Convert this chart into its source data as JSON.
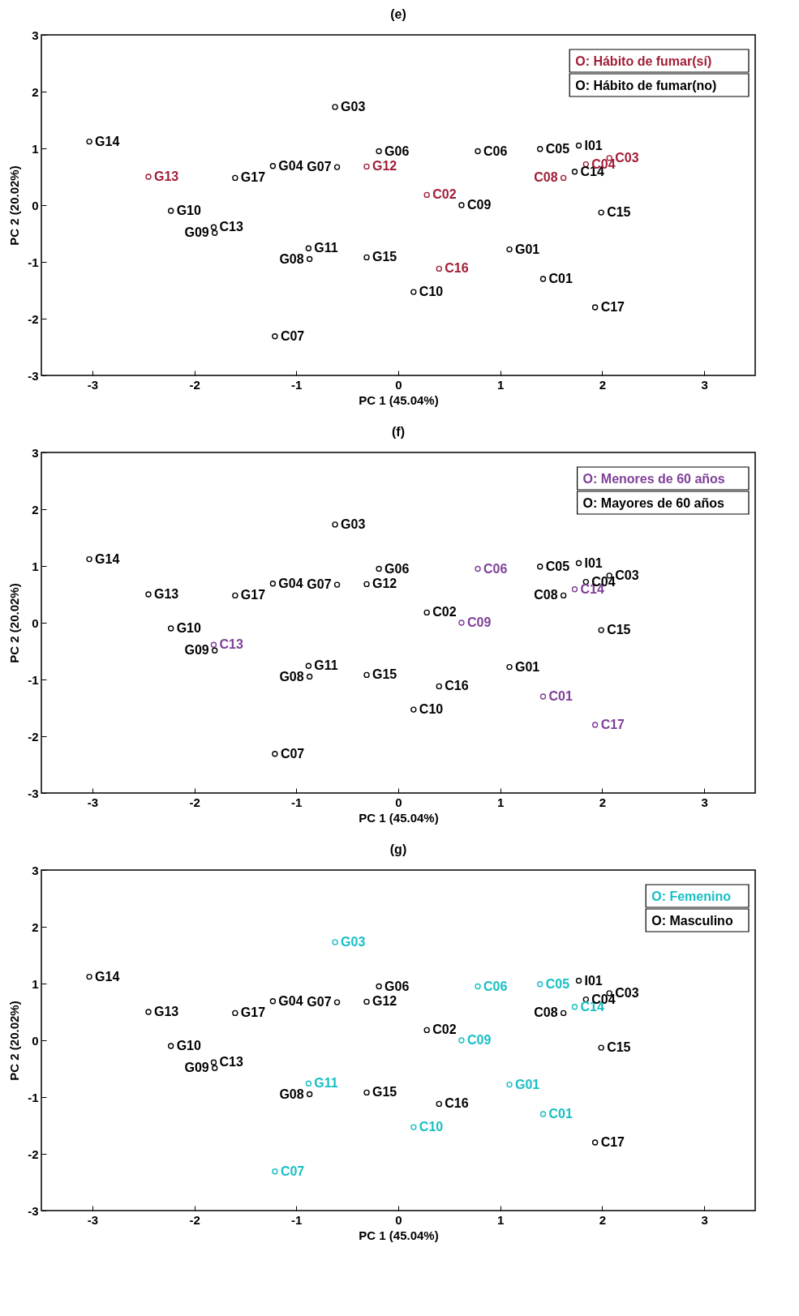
{
  "chart_data": [
    {
      "type": "scatter",
      "title": "(e)",
      "xlabel": "PC 1 (45.04%)",
      "ylabel": "PC 2 (20.02%)",
      "xlim": [
        -3.5,
        3.5
      ],
      "ylim": [
        -3,
        3
      ],
      "xticks": [
        -3,
        -2,
        -1,
        0,
        1,
        2,
        3
      ],
      "yticks": [
        -3,
        -2,
        -1,
        0,
        1,
        2,
        3
      ],
      "grid": false,
      "legend": "top right",
      "marker": "circle",
      "series": [
        {
          "name": "O: Hábito de fumar(sí)",
          "color": "#a21d36",
          "x": [
            -2.45,
            -0.31,
            0.28,
            0.4,
            1.62,
            1.84,
            2.07
          ],
          "values": [
            0.5,
            0.68,
            0.18,
            -1.12,
            0.48,
            0.72,
            0.83
          ]
        },
        {
          "name": "O: Hábito de fumar(no)",
          "color": "#000000",
          "x": [
            -3.03,
            -2.23,
            -1.81,
            -1.8,
            -1.6,
            -1.23,
            -1.21,
            -0.88,
            -0.87,
            -0.62,
            -0.6,
            -0.31,
            -0.19,
            0.62,
            0.78,
            0.15,
            1.09,
            1.39,
            1.42,
            1.77,
            1.73,
            1.99,
            1.93
          ],
          "values": [
            1.12,
            -0.1,
            -0.39,
            -0.49,
            0.48,
            0.69,
            -2.31,
            -0.76,
            -0.95,
            1.73,
            0.67,
            -0.92,
            0.95,
            0.0,
            0.95,
            -1.53,
            -0.78,
            0.99,
            -1.3,
            1.05,
            0.59,
            -0.13,
            -1.8
          ]
        }
      ],
      "annotations": [
        {
          "text": "G14",
          "x": -3.03,
          "y": 1.12
        },
        {
          "text": "G13",
          "x": -2.45,
          "y": 0.5
        },
        {
          "text": "G10",
          "x": -2.23,
          "y": -0.1
        },
        {
          "text": "C13",
          "x": -1.81,
          "y": -0.39
        },
        {
          "text": "G09",
          "x": -1.8,
          "y": -0.49
        },
        {
          "text": "G17",
          "x": -1.6,
          "y": 0.48
        },
        {
          "text": "G04",
          "x": -1.23,
          "y": 0.69
        },
        {
          "text": "C07",
          "x": -1.21,
          "y": -2.31
        },
        {
          "text": "G11",
          "x": -0.88,
          "y": -0.76
        },
        {
          "text": "G08",
          "x": -0.87,
          "y": -0.95
        },
        {
          "text": "G03",
          "x": -0.62,
          "y": 1.73
        },
        {
          "text": "G07",
          "x": -0.6,
          "y": 0.67
        },
        {
          "text": "G12",
          "x": -0.31,
          "y": 0.68
        },
        {
          "text": "G15",
          "x": -0.31,
          "y": -0.92
        },
        {
          "text": "G06",
          "x": -0.19,
          "y": 0.95
        },
        {
          "text": "C02",
          "x": 0.28,
          "y": 0.18
        },
        {
          "text": "C09",
          "x": 0.62,
          "y": 0.0
        },
        {
          "text": "C06",
          "x": 0.78,
          "y": 0.95
        },
        {
          "text": "C16",
          "x": 0.4,
          "y": -1.12
        },
        {
          "text": "C10",
          "x": 0.15,
          "y": -1.53
        },
        {
          "text": "G01",
          "x": 1.09,
          "y": -0.78
        },
        {
          "text": "C05",
          "x": 1.39,
          "y": 0.99
        },
        {
          "text": "C01",
          "x": 1.42,
          "y": -1.3
        },
        {
          "text": "C08",
          "x": 1.62,
          "y": 0.48
        },
        {
          "text": "I01",
          "x": 1.77,
          "y": 1.05
        },
        {
          "text": "C14",
          "x": 1.73,
          "y": 0.59
        },
        {
          "text": "C04",
          "x": 1.84,
          "y": 0.72
        },
        {
          "text": "C03",
          "x": 2.07,
          "y": 0.83
        },
        {
          "text": "C15",
          "x": 1.99,
          "y": -0.13
        },
        {
          "text": "C17",
          "x": 1.93,
          "y": -1.8
        }
      ]
    },
    {
      "type": "scatter",
      "title": "(f)",
      "xlabel": "PC 1 (45.04%)",
      "ylabel": "PC 2 (20.02%)",
      "xlim": [
        -3.5,
        3.5
      ],
      "ylim": [
        -3,
        3
      ],
      "xticks": [
        -3,
        -2,
        -1,
        0,
        1,
        2,
        3
      ],
      "yticks": [
        -3,
        -2,
        -1,
        0,
        1,
        2,
        3
      ],
      "grid": false,
      "legend": "top right",
      "marker": "circle",
      "series": [
        {
          "name": "O: Menores de 60 años",
          "color": "#7f3f98",
          "x": [
            -1.81,
            0.62,
            0.78,
            1.42,
            1.73,
            1.93
          ],
          "values": [
            -0.39,
            0.0,
            0.95,
            -1.3,
            0.59,
            -1.8
          ]
        },
        {
          "name": "O: Mayores de 60 años",
          "color": "#000000",
          "x": [
            -3.03,
            -2.45,
            -2.23,
            -1.8,
            -1.6,
            -1.23,
            -1.21,
            -0.88,
            -0.87,
            -0.62,
            -0.6,
            -0.31,
            -0.31,
            -0.19,
            0.28,
            0.4,
            0.15,
            1.09,
            1.39,
            1.62,
            1.77,
            1.84,
            2.07,
            1.99
          ],
          "values": [
            1.12,
            0.5,
            -0.1,
            -0.49,
            0.48,
            0.69,
            -2.31,
            -0.76,
            -0.95,
            1.73,
            0.67,
            0.68,
            -0.92,
            0.95,
            0.18,
            -1.12,
            -1.53,
            -0.78,
            0.99,
            0.48,
            1.05,
            0.72,
            0.83,
            -0.13
          ]
        }
      ],
      "annotations": [
        {
          "text": "G14",
          "x": -3.03,
          "y": 1.12
        },
        {
          "text": "G13",
          "x": -2.45,
          "y": 0.5
        },
        {
          "text": "G10",
          "x": -2.23,
          "y": -0.1
        },
        {
          "text": "C13",
          "x": -1.81,
          "y": -0.39
        },
        {
          "text": "G09",
          "x": -1.8,
          "y": -0.49
        },
        {
          "text": "G17",
          "x": -1.6,
          "y": 0.48
        },
        {
          "text": "G04",
          "x": -1.23,
          "y": 0.69
        },
        {
          "text": "C07",
          "x": -1.21,
          "y": -2.31
        },
        {
          "text": "G11",
          "x": -0.88,
          "y": -0.76
        },
        {
          "text": "G08",
          "x": -0.87,
          "y": -0.95
        },
        {
          "text": "G03",
          "x": -0.62,
          "y": 1.73
        },
        {
          "text": "G07",
          "x": -0.6,
          "y": 0.67
        },
        {
          "text": "G12",
          "x": -0.31,
          "y": 0.68
        },
        {
          "text": "G15",
          "x": -0.31,
          "y": -0.92
        },
        {
          "text": "G06",
          "x": -0.19,
          "y": 0.95
        },
        {
          "text": "C02",
          "x": 0.28,
          "y": 0.18
        },
        {
          "text": "C09",
          "x": 0.62,
          "y": 0.0
        },
        {
          "text": "C06",
          "x": 0.78,
          "y": 0.95
        },
        {
          "text": "C16",
          "x": 0.4,
          "y": -1.12
        },
        {
          "text": "C10",
          "x": 0.15,
          "y": -1.53
        },
        {
          "text": "G01",
          "x": 1.09,
          "y": -0.78
        },
        {
          "text": "C05",
          "x": 1.39,
          "y": 0.99
        },
        {
          "text": "C01",
          "x": 1.42,
          "y": -1.3
        },
        {
          "text": "C08",
          "x": 1.62,
          "y": 0.48
        },
        {
          "text": "I01",
          "x": 1.77,
          "y": 1.05
        },
        {
          "text": "C14",
          "x": 1.73,
          "y": 0.59
        },
        {
          "text": "C04",
          "x": 1.84,
          "y": 0.72
        },
        {
          "text": "C03",
          "x": 2.07,
          "y": 0.83
        },
        {
          "text": "C15",
          "x": 1.99,
          "y": -0.13
        },
        {
          "text": "C17",
          "x": 1.93,
          "y": -1.8
        }
      ]
    },
    {
      "type": "scatter",
      "title": "(g)",
      "xlabel": "PC 1 (45.04%)",
      "ylabel": "PC 2 (20.02%)",
      "xlim": [
        -3.5,
        3.5
      ],
      "ylim": [
        -3,
        3
      ],
      "xticks": [
        -3,
        -2,
        -1,
        0,
        1,
        2,
        3
      ],
      "yticks": [
        -3,
        -2,
        -1,
        0,
        1,
        2,
        3
      ],
      "grid": false,
      "legend": "top right",
      "marker": "circle",
      "series": [
        {
          "name": "O: Femenino",
          "color": "#17bfc4",
          "x": [
            -1.21,
            -0.88,
            -0.62,
            0.62,
            0.78,
            0.15,
            1.09,
            1.39,
            1.42,
            1.73
          ],
          "values": [
            -2.31,
            -0.76,
            1.73,
            0.0,
            0.95,
            -1.53,
            -0.78,
            0.99,
            -1.3,
            0.59
          ]
        },
        {
          "name": "O: Masculino",
          "color": "#000000",
          "x": [
            -3.03,
            -2.45,
            -2.23,
            -1.81,
            -1.8,
            -1.6,
            -1.23,
            -0.87,
            -0.6,
            -0.31,
            -0.31,
            -0.19,
            0.28,
            0.4,
            1.62,
            1.77,
            1.84,
            2.07,
            1.99,
            1.93
          ],
          "values": [
            1.12,
            0.5,
            -0.1,
            -0.39,
            -0.49,
            0.48,
            0.69,
            -0.95,
            0.67,
            0.68,
            -0.92,
            0.95,
            0.18,
            -1.12,
            0.48,
            1.05,
            0.72,
            0.83,
            -0.13,
            -1.8
          ]
        }
      ],
      "annotations": [
        {
          "text": "G14",
          "x": -3.03,
          "y": 1.12
        },
        {
          "text": "G13",
          "x": -2.45,
          "y": 0.5
        },
        {
          "text": "G10",
          "x": -2.23,
          "y": -0.1
        },
        {
          "text": "C13",
          "x": -1.81,
          "y": -0.39
        },
        {
          "text": "G09",
          "x": -1.8,
          "y": -0.49
        },
        {
          "text": "G17",
          "x": -1.6,
          "y": 0.48
        },
        {
          "text": "G04",
          "x": -1.23,
          "y": 0.69
        },
        {
          "text": "C07",
          "x": -1.21,
          "y": -2.31
        },
        {
          "text": "G11",
          "x": -0.88,
          "y": -0.76
        },
        {
          "text": "G08",
          "x": -0.87,
          "y": -0.95
        },
        {
          "text": "G03",
          "x": -0.62,
          "y": 1.73
        },
        {
          "text": "G07",
          "x": -0.6,
          "y": 0.67
        },
        {
          "text": "G12",
          "x": -0.31,
          "y": 0.68
        },
        {
          "text": "G15",
          "x": -0.31,
          "y": -0.92
        },
        {
          "text": "G06",
          "x": -0.19,
          "y": 0.95
        },
        {
          "text": "C02",
          "x": 0.28,
          "y": 0.18
        },
        {
          "text": "C09",
          "x": 0.62,
          "y": 0.0
        },
        {
          "text": "C06",
          "x": 0.78,
          "y": 0.95
        },
        {
          "text": "C16",
          "x": 0.4,
          "y": -1.12
        },
        {
          "text": "C10",
          "x": 0.15,
          "y": -1.53
        },
        {
          "text": "G01",
          "x": 1.09,
          "y": -0.78
        },
        {
          "text": "C05",
          "x": 1.39,
          "y": 0.99
        },
        {
          "text": "C01",
          "x": 1.42,
          "y": -1.3
        },
        {
          "text": "C08",
          "x": 1.62,
          "y": 0.48
        },
        {
          "text": "I01",
          "x": 1.77,
          "y": 1.05
        },
        {
          "text": "C14",
          "x": 1.73,
          "y": 0.59
        },
        {
          "text": "C04",
          "x": 1.84,
          "y": 0.72
        },
        {
          "text": "C03",
          "x": 2.07,
          "y": 0.83
        },
        {
          "text": "C15",
          "x": 1.99,
          "y": -0.13
        },
        {
          "text": "C17",
          "x": 1.93,
          "y": -1.8
        }
      ]
    }
  ]
}
